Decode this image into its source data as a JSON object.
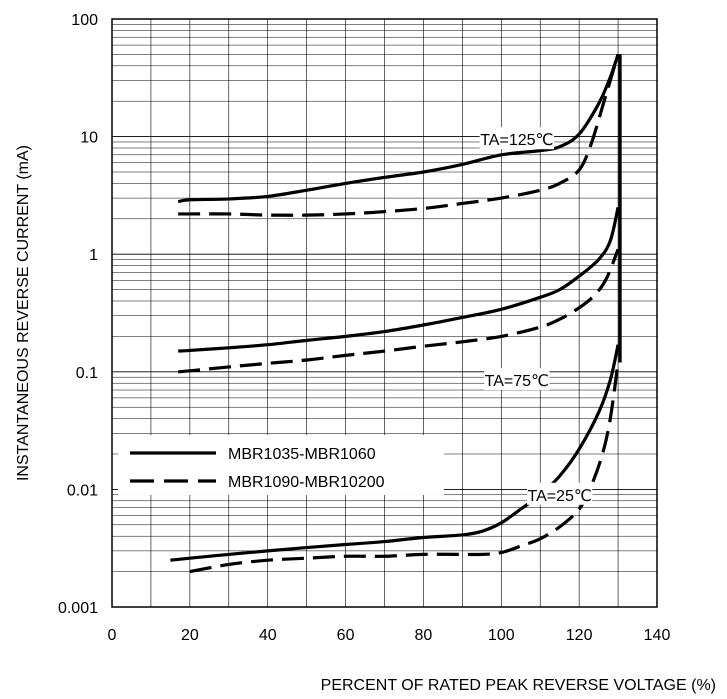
{
  "chart_data": {
    "type": "line",
    "title": "",
    "xlabel": "PERCENT OF RATED PEAK REVERSE VOLTAGE (%)",
    "ylabel": "INSTANTANEOUS REVERSE CURRENT (mA)",
    "xlim": [
      0,
      140
    ],
    "ylim": [
      0.001,
      100
    ],
    "yscale": "log",
    "grid": true,
    "x_ticks": [
      0,
      20,
      40,
      60,
      80,
      100,
      120,
      140
    ],
    "x_tick_labels": [
      "0",
      "20",
      "40",
      "60",
      "80",
      "100",
      "120",
      "140"
    ],
    "y_ticks": [
      0.001,
      0.01,
      0.1,
      1,
      10,
      100
    ],
    "y_tick_labels": [
      "0.001",
      "0.01",
      "0.1",
      "1",
      "10",
      "100"
    ],
    "legend": {
      "placement": "lower-left",
      "entries": [
        {
          "label": "MBR1035-MBR1060",
          "style": "solid"
        },
        {
          "label": "MBR1090-MBR10200",
          "style": "dashed"
        }
      ]
    },
    "annotations": [
      {
        "text": "TA=125℃",
        "x": 104,
        "y": 9.5
      },
      {
        "text": "TA=75℃",
        "x": 104,
        "y": 0.085
      },
      {
        "text": "TA=25℃",
        "x": 115,
        "y": 0.009
      }
    ],
    "series": [
      {
        "group": "MBR1035-MBR1060",
        "condition": "TA=125℃",
        "style": "solid",
        "x": [
          17,
          20,
          30,
          40,
          50,
          60,
          70,
          80,
          90,
          100,
          110,
          115,
          120,
          125,
          128,
          130
        ],
        "y": [
          2.8,
          2.9,
          2.95,
          3.1,
          3.5,
          4.0,
          4.5,
          5.0,
          5.8,
          7.0,
          7.6,
          8.2,
          10.5,
          19,
          32,
          50
        ]
      },
      {
        "group": "MBR1090-MBR10200",
        "condition": "TA=125℃",
        "style": "dashed",
        "x": [
          17,
          20,
          30,
          40,
          50,
          60,
          70,
          80,
          90,
          100,
          110,
          115,
          120,
          123,
          126,
          128,
          130
        ],
        "y": [
          2.2,
          2.2,
          2.2,
          2.15,
          2.15,
          2.2,
          2.3,
          2.45,
          2.7,
          3.0,
          3.5,
          4.0,
          5.2,
          8.5,
          18,
          30,
          50
        ]
      },
      {
        "group": "MBR1035-MBR1060",
        "condition": "TA=75℃",
        "style": "solid",
        "x": [
          17,
          20,
          30,
          40,
          50,
          60,
          70,
          80,
          90,
          100,
          110,
          115,
          120,
          125,
          128,
          130
        ],
        "y": [
          0.15,
          0.152,
          0.16,
          0.17,
          0.185,
          0.2,
          0.22,
          0.25,
          0.29,
          0.34,
          0.43,
          0.5,
          0.65,
          0.9,
          1.3,
          2.5
        ]
      },
      {
        "group": "MBR1090-MBR10200",
        "condition": "TA=75℃",
        "style": "dashed",
        "x": [
          17,
          20,
          30,
          40,
          50,
          60,
          70,
          80,
          90,
          100,
          110,
          115,
          120,
          124,
          127,
          130
        ],
        "y": [
          0.1,
          0.102,
          0.11,
          0.118,
          0.126,
          0.138,
          0.15,
          0.165,
          0.18,
          0.2,
          0.24,
          0.28,
          0.35,
          0.45,
          0.62,
          1.1
        ]
      },
      {
        "group": "MBR1035-MBR1060",
        "condition": "TA=25℃",
        "style": "solid",
        "x": [
          15,
          20,
          30,
          40,
          50,
          60,
          70,
          80,
          90,
          95,
          100,
          105,
          110,
          115,
          120,
          125,
          128,
          130
        ],
        "y": [
          0.0025,
          0.0026,
          0.0028,
          0.003,
          0.0032,
          0.0034,
          0.0036,
          0.0039,
          0.0041,
          0.0044,
          0.0052,
          0.0068,
          0.009,
          0.013,
          0.022,
          0.045,
          0.085,
          0.17
        ]
      },
      {
        "group": "MBR1090-MBR10200",
        "condition": "TA=25℃",
        "style": "dashed",
        "x": [
          20,
          30,
          40,
          50,
          60,
          70,
          80,
          90,
          95,
          100,
          105,
          110,
          115,
          120,
          123,
          126,
          128,
          130
        ],
        "y": [
          0.002,
          0.0023,
          0.0025,
          0.0026,
          0.0027,
          0.0027,
          0.0028,
          0.0028,
          0.0028,
          0.0029,
          0.0033,
          0.0038,
          0.0048,
          0.0068,
          0.0105,
          0.02,
          0.04,
          0.12
        ]
      }
    ]
  }
}
